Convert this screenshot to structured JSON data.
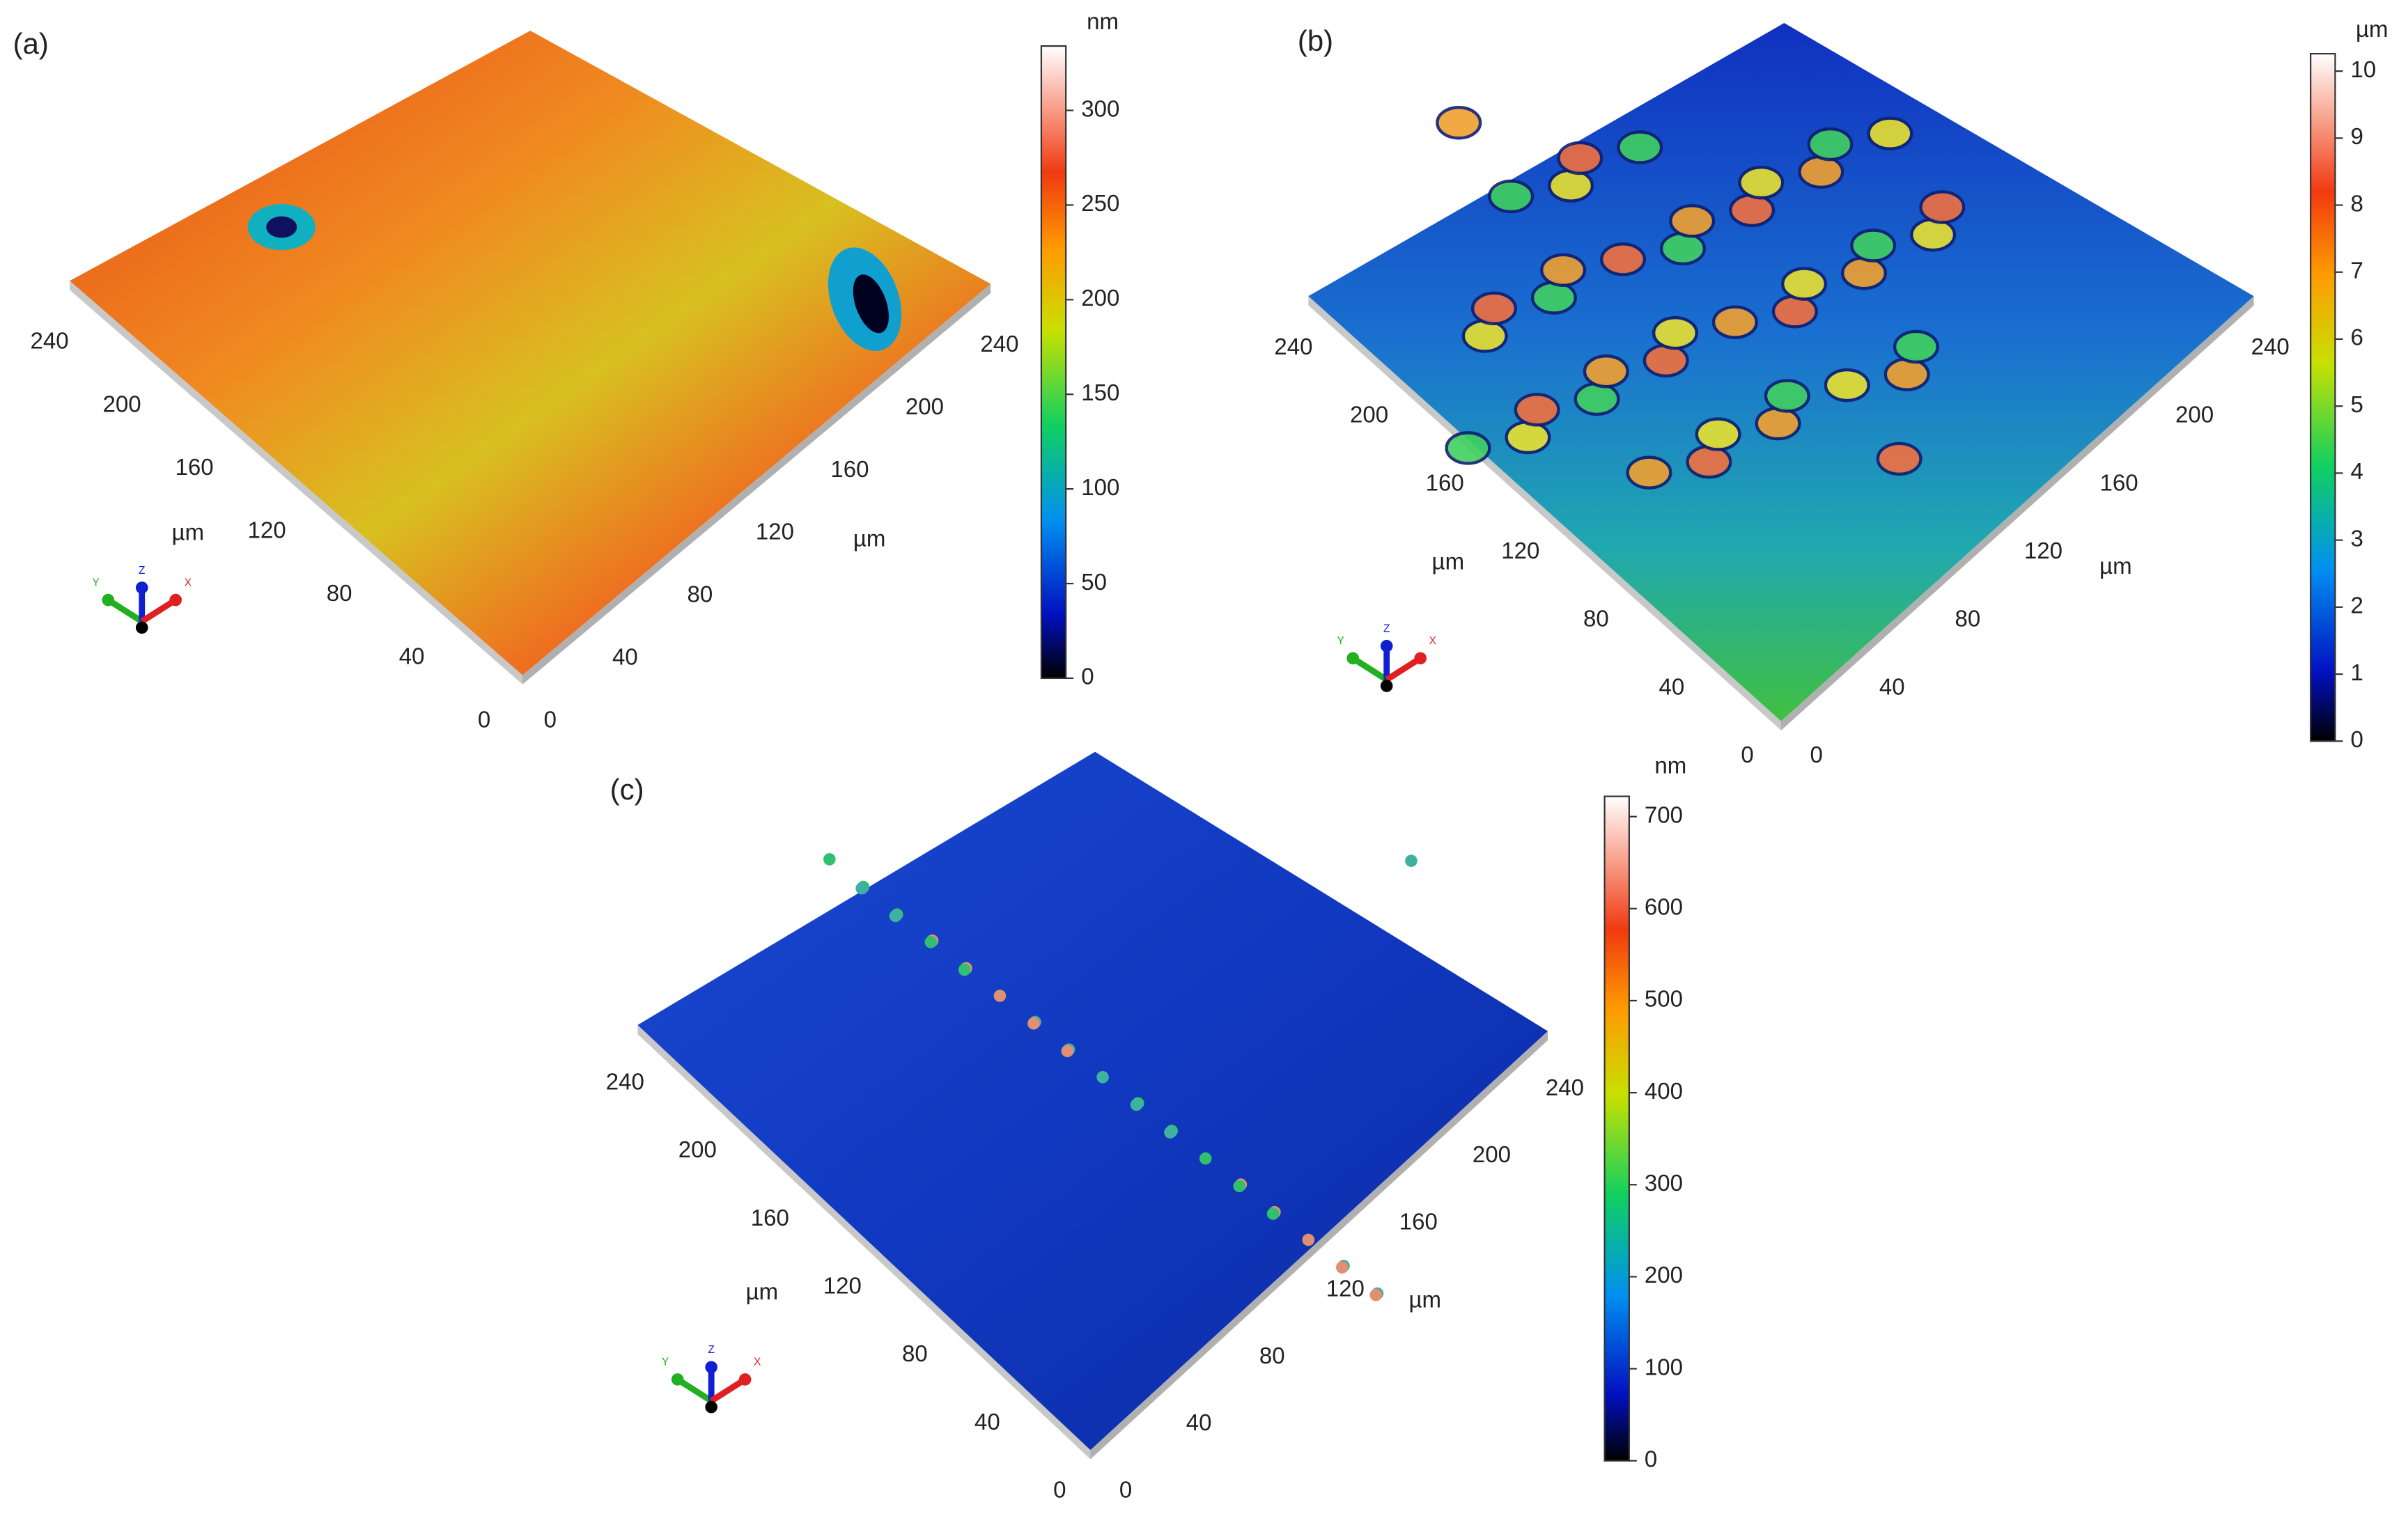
{
  "panels": [
    {
      "label": "(a)",
      "axis_range": [
        0,
        250
      ],
      "x_ticks": [
        0,
        40,
        80,
        120,
        160,
        200,
        240
      ],
      "y_ticks": [
        0,
        40,
        80,
        120,
        160,
        200,
        240
      ],
      "x_unit": "µm",
      "y_unit": "µm",
      "triad": [
        "Y",
        "Z",
        "X"
      ],
      "colorbar": {
        "unit": "nm",
        "lim": [
          0,
          334
        ],
        "ticks": [
          0,
          50,
          100,
          150,
          200,
          250,
          300
        ]
      }
    },
    {
      "label": "(b)",
      "axis_range": [
        0,
        250
      ],
      "x_ticks": [
        0,
        40,
        80,
        120,
        160,
        200,
        240
      ],
      "y_ticks": [
        0,
        40,
        80,
        120,
        160,
        200,
        240
      ],
      "x_unit": "µm",
      "y_unit": "µm",
      "triad": [
        "Y",
        "Z",
        "X"
      ],
      "colorbar": {
        "unit": "µm",
        "lim": [
          0,
          10.26
        ],
        "ticks": [
          0,
          1,
          2,
          3,
          4,
          5,
          6,
          7,
          8,
          9,
          10
        ]
      }
    },
    {
      "label": "(c)",
      "axis_range": [
        0,
        250
      ],
      "x_ticks": [
        0,
        40,
        80,
        120,
        160,
        200,
        240
      ],
      "y_ticks": [
        0,
        40,
        80,
        120,
        160,
        200,
        240
      ],
      "x_unit": "µm",
      "y_unit": "µm",
      "triad": [
        "Y",
        "Z",
        "X"
      ],
      "colorbar": {
        "unit": "nm",
        "lim": [
          0,
          722
        ],
        "ticks": [
          0,
          100,
          200,
          300,
          400,
          500,
          600,
          700
        ]
      }
    }
  ]
}
